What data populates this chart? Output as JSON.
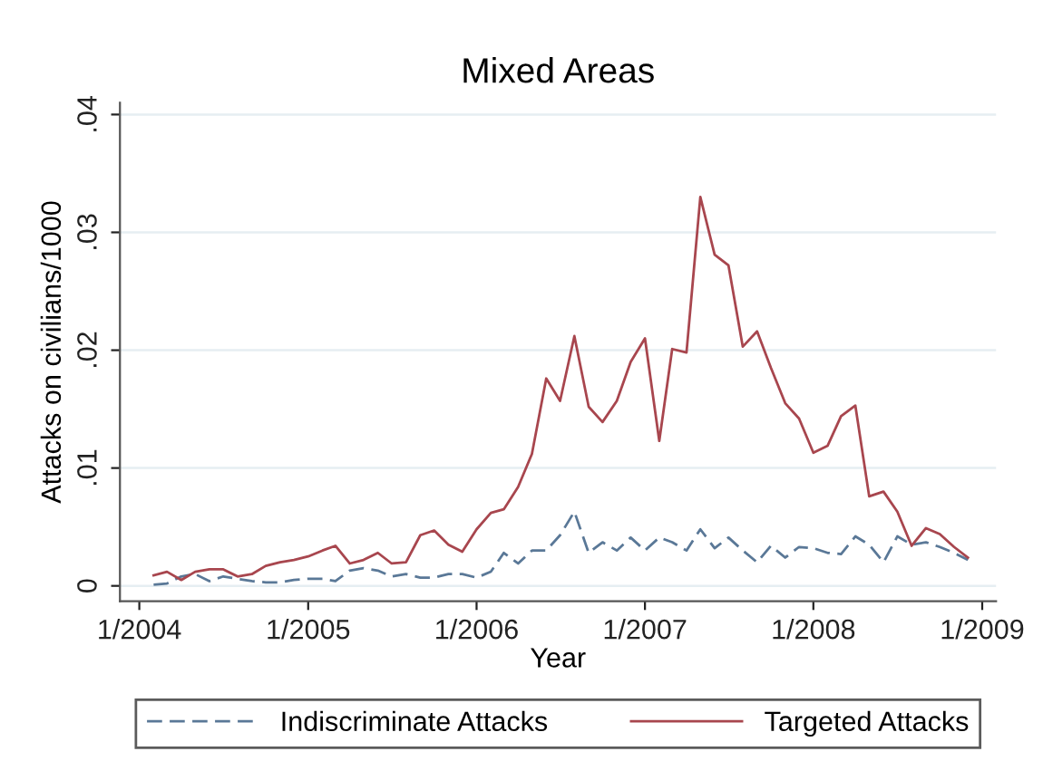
{
  "chart_data": {
    "type": "line",
    "title": "Mixed Areas",
    "xlabel": "Year",
    "ylabel": "Attacks on civilians/1000",
    "x": [
      "2004-02",
      "2004-03",
      "2004-04",
      "2004-05",
      "2004-06",
      "2004-07",
      "2004-08",
      "2004-09",
      "2004-10",
      "2004-11",
      "2004-12",
      "2005-01",
      "2005-02",
      "2005-03",
      "2005-04",
      "2005-05",
      "2005-06",
      "2005-07",
      "2005-08",
      "2005-09",
      "2005-10",
      "2005-11",
      "2005-12",
      "2006-01",
      "2006-02",
      "2006-03",
      "2006-04",
      "2006-05",
      "2006-06",
      "2006-07",
      "2006-08",
      "2006-09",
      "2006-10",
      "2006-11",
      "2006-12",
      "2007-01",
      "2007-02",
      "2007-03",
      "2007-04",
      "2007-05",
      "2007-06",
      "2007-07",
      "2007-08",
      "2007-09",
      "2007-10",
      "2007-11",
      "2007-12",
      "2008-01",
      "2008-02",
      "2008-03",
      "2008-04",
      "2008-05",
      "2008-06",
      "2008-07",
      "2008-08",
      "2008-09",
      "2008-10",
      "2008-11",
      "2008-12"
    ],
    "series": [
      {
        "name": "Indiscriminate Attacks",
        "color": "#5a7897",
        "line_style": "dashed",
        "values": [
          0.0001,
          0.0002,
          0.0008,
          0.001,
          0.0004,
          0.0008,
          0.0006,
          0.0004,
          0.0003,
          0.0003,
          0.0005,
          0.0006,
          0.0006,
          0.0004,
          0.0013,
          0.0015,
          0.0013,
          0.0008,
          0.001,
          0.0007,
          0.0007,
          0.001,
          0.001,
          0.0007,
          0.0012,
          0.0028,
          0.0019,
          0.003,
          0.003,
          0.0043,
          0.0063,
          0.0028,
          0.0037,
          0.003,
          0.0041,
          0.003,
          0.0041,
          0.0037,
          0.003,
          0.0048,
          0.0032,
          0.0041,
          0.003,
          0.002,
          0.0034,
          0.0024,
          0.0033,
          0.0032,
          0.0028,
          0.0027,
          0.0042,
          0.0035,
          0.002,
          0.0042,
          0.0035,
          0.0037,
          0.0033,
          0.0028,
          0.0022
        ]
      },
      {
        "name": "Targeted Attacks",
        "color": "#a8464e",
        "line_style": "solid",
        "values": [
          0.0009,
          0.0012,
          0.0005,
          0.0012,
          0.0014,
          0.0014,
          0.0008,
          0.001,
          0.0017,
          0.002,
          0.0022,
          0.0025,
          0.003,
          0.0034,
          0.0019,
          0.0022,
          0.0028,
          0.0019,
          0.002,
          0.0043,
          0.0047,
          0.0035,
          0.0029,
          0.0048,
          0.0062,
          0.0065,
          0.0084,
          0.0112,
          0.0176,
          0.0157,
          0.0212,
          0.0152,
          0.0139,
          0.0157,
          0.019,
          0.021,
          0.0123,
          0.0201,
          0.0198,
          0.033,
          0.0281,
          0.0272,
          0.0203,
          0.0216,
          0.0185,
          0.0155,
          0.0142,
          0.0113,
          0.0119,
          0.0144,
          0.0153,
          0.0076,
          0.008,
          0.0063,
          0.0034,
          0.0049,
          0.0044,
          0.0033,
          0.0024
        ]
      }
    ],
    "xlim": [
      "2003-11-20",
      "2009-01-31"
    ],
    "xticks": [
      {
        "value": "2004-01",
        "label": "1/2004"
      },
      {
        "value": "2005-01",
        "label": "1/2005"
      },
      {
        "value": "2006-01",
        "label": "1/2006"
      },
      {
        "value": "2007-01",
        "label": "1/2007"
      },
      {
        "value": "2008-01",
        "label": "1/2008"
      },
      {
        "value": "2009-01",
        "label": "1/2009"
      }
    ],
    "ylim": [
      -0.0013,
      0.041
    ],
    "yticks": [
      0,
      {
        "value": 0.01,
        "label": ".01"
      },
      {
        "value": 0.02,
        "label": ".02"
      },
      {
        "value": 0.03,
        "label": ".03"
      },
      {
        "value": 0.04,
        "label": ".04"
      }
    ],
    "grid": "y",
    "legend": "bottom"
  }
}
